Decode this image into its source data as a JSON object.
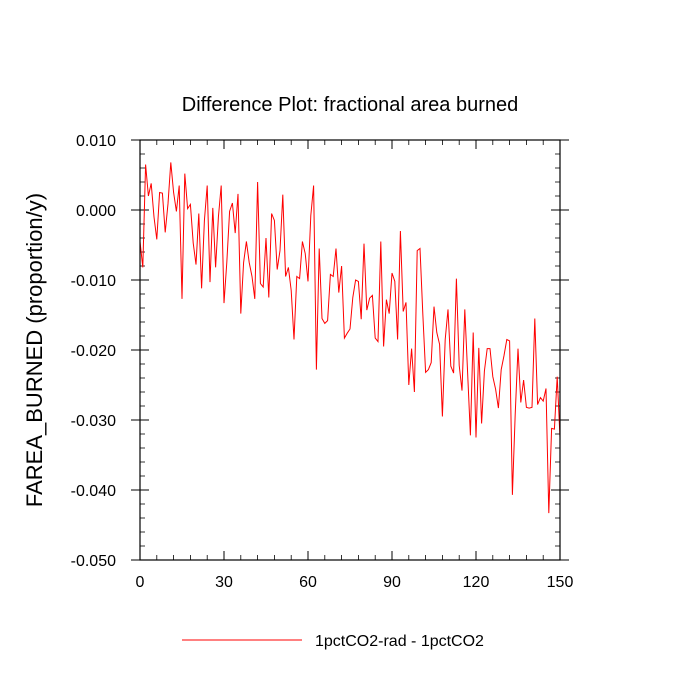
{
  "chart_data": {
    "type": "line",
    "title": "Difference Plot: fractional area burned",
    "xlabel": "",
    "ylabel": "FAREA_BURNED  (proportion/y)",
    "xlim": [
      0,
      150
    ],
    "ylim": [
      -0.05,
      0.01
    ],
    "xticks": [
      0,
      30,
      60,
      90,
      120,
      150
    ],
    "xtick_labels": [
      "0",
      "30",
      "60",
      "90",
      "120",
      "150"
    ],
    "yticks": [
      0.01,
      0.0,
      -0.01,
      -0.02,
      -0.03,
      -0.04,
      -0.05
    ],
    "ytick_labels": [
      "0.010",
      "0.000",
      "-0.010",
      "-0.020",
      "-0.030",
      "-0.040",
      "-0.050"
    ],
    "legend_position": "bottom-center",
    "series": [
      {
        "name": "1pctCO2-rad - 1pctCO2",
        "color": "#ff0000",
        "x": [
          0,
          1,
          2,
          3,
          4,
          5,
          6,
          7,
          8,
          9,
          10,
          11,
          12,
          13,
          14,
          15,
          16,
          17,
          18,
          19,
          20,
          21,
          22,
          23,
          24,
          25,
          26,
          27,
          28,
          29,
          30,
          31,
          32,
          33,
          34,
          35,
          36,
          37,
          38,
          39,
          40,
          41,
          42,
          43,
          44,
          45,
          46,
          47,
          48,
          49,
          50,
          51,
          52,
          53,
          54,
          55,
          56,
          57,
          58,
          59,
          60,
          61,
          62,
          63,
          64,
          65,
          66,
          67,
          68,
          69,
          70,
          71,
          72,
          73,
          74,
          75,
          76,
          77,
          78,
          79,
          80,
          81,
          82,
          83,
          84,
          85,
          86,
          87,
          88,
          89,
          90,
          91,
          92,
          93,
          94,
          95,
          96,
          97,
          98,
          99,
          100,
          101,
          102,
          103,
          104,
          105,
          106,
          107,
          108,
          109,
          110,
          111,
          112,
          113,
          114,
          115,
          116,
          117,
          118,
          119,
          120,
          121,
          122,
          123,
          124,
          125,
          126,
          127,
          128,
          129,
          130,
          131,
          132,
          133,
          134,
          135,
          136,
          137,
          138,
          139,
          140,
          141,
          142,
          143,
          144,
          145,
          146,
          147,
          148,
          149,
          150
        ],
        "y": [
          -0.0045,
          -0.0082,
          0.0065,
          0.002,
          0.0038,
          -0.001,
          -0.0042,
          0.0025,
          0.0024,
          -0.0032,
          0.0009,
          0.0068,
          0.0025,
          -0.0002,
          0.0035,
          -0.0127,
          0.0052,
          0.0002,
          0.0008,
          -0.0047,
          -0.0078,
          -0.0005,
          -0.0112,
          -0.0015,
          0.0035,
          -0.0103,
          0.0003,
          -0.0082,
          -0.001,
          0.0035,
          -0.0133,
          -0.0075,
          -0.0002,
          0.001,
          -0.0033,
          0.0023,
          -0.0148,
          -0.0075,
          -0.0045,
          -0.0075,
          -0.0095,
          -0.0127,
          0.004,
          -0.0105,
          -0.011,
          -0.004,
          -0.0125,
          -0.0005,
          -0.0015,
          -0.0085,
          -0.0058,
          0.0022,
          -0.0095,
          -0.0082,
          -0.0115,
          -0.0185,
          -0.0095,
          -0.0098,
          -0.0045,
          -0.0062,
          -0.0102,
          -0.0008,
          0.0035,
          -0.0228,
          -0.0055,
          -0.0155,
          -0.0162,
          -0.0158,
          -0.0092,
          -0.0095,
          -0.0055,
          -0.0118,
          -0.008,
          -0.0183,
          -0.0176,
          -0.017,
          -0.0125,
          -0.01,
          -0.0102,
          -0.0156,
          -0.0048,
          -0.0143,
          -0.0126,
          -0.0122,
          -0.0183,
          -0.0188,
          -0.0045,
          -0.0195,
          -0.0128,
          -0.0148,
          -0.009,
          -0.0102,
          -0.0185,
          -0.003,
          -0.0145,
          -0.0132,
          -0.025,
          -0.0198,
          -0.026,
          -0.0058,
          -0.0055,
          -0.0148,
          -0.0232,
          -0.0228,
          -0.0218,
          -0.0138,
          -0.0175,
          -0.0192,
          -0.0295,
          -0.0185,
          -0.0142,
          -0.0223,
          -0.0233,
          -0.0098,
          -0.0222,
          -0.0258,
          -0.0142,
          -0.0232,
          -0.0322,
          -0.0175,
          -0.0325,
          -0.0197,
          -0.0305,
          -0.023,
          -0.0198,
          -0.0198,
          -0.0238,
          -0.0256,
          -0.0283,
          -0.0228,
          -0.0208,
          -0.0185,
          -0.0187,
          -0.0407,
          -0.0292,
          -0.0198,
          -0.0275,
          -0.0243,
          -0.0282,
          -0.0283,
          -0.0282,
          -0.0155,
          -0.0278,
          -0.0268,
          -0.0273,
          -0.0255,
          -0.0433,
          -0.0312,
          -0.0313,
          -0.0238,
          -0.0325
        ]
      }
    ]
  }
}
